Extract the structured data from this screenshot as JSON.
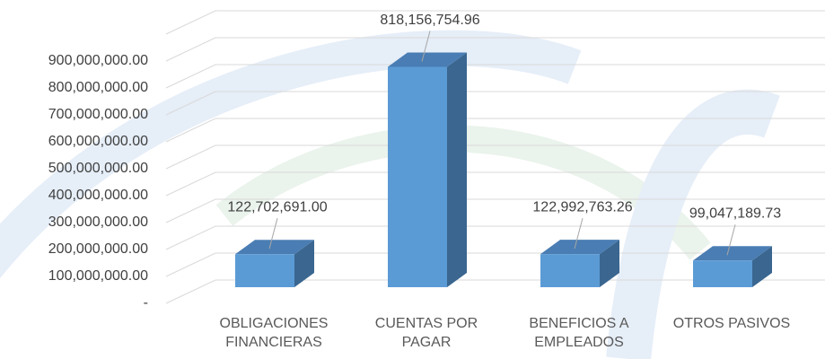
{
  "chart_data": {
    "type": "bar3d",
    "categories": [
      "OBLIGACIONES FINANCIERAS",
      "CUENTAS POR PAGAR",
      "BENEFICIOS A EMPLEADOS",
      "OTROS PASIVOS"
    ],
    "values": [
      122702691.0,
      818156754.96,
      122992763.26,
      99047189.73
    ],
    "value_labels": [
      "122,702,691.00",
      "818,156,754.96",
      "122,992,763.26",
      "99,047,189.73"
    ],
    "color": "#5b9bd5",
    "ylim": [
      0,
      1000000000
    ],
    "yticks": [
      {
        "value": 0,
        "label": "-"
      },
      {
        "value": 100000000,
        "label": "100,000,000.00"
      },
      {
        "value": 200000000,
        "label": "200,000,000.00"
      },
      {
        "value": 300000000,
        "label": "300,000,000.00"
      },
      {
        "value": 400000000,
        "label": "400,000,000.00"
      },
      {
        "value": 500000000,
        "label": "500,000,000.00"
      },
      {
        "value": 600000000,
        "label": "600,000,000.00"
      },
      {
        "value": 700000000,
        "label": "700,000,000.00"
      },
      {
        "value": 800000000,
        "label": "800,000,000.00"
      },
      {
        "value": 900000000,
        "label": "900,000,000.00"
      }
    ],
    "grid": true
  }
}
